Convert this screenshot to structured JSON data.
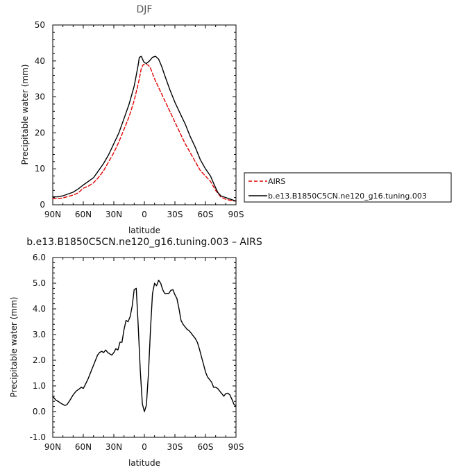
{
  "chart_data": [
    {
      "type": "line",
      "title": "DJF",
      "xlabel": "latitude",
      "ylabel": "Precipitable water (mm)",
      "x_ticks": [
        "90N",
        "60N",
        "30N",
        "0",
        "30S",
        "60S",
        "90S"
      ],
      "x_tick_values": [
        90,
        60,
        30,
        0,
        -30,
        -60,
        -90
      ],
      "xlim": [
        90,
        -90
      ],
      "ylim": [
        0,
        50
      ],
      "y_ticks": [
        "0",
        "10",
        "20",
        "30",
        "40",
        "50"
      ],
      "y_tick_values": [
        0,
        10,
        20,
        30,
        40,
        50
      ],
      "legend_position": "right",
      "series": [
        {
          "name": "AIRS",
          "color": "#e00000",
          "dash": "dashed",
          "points": [
            [
              90,
              1.7
            ],
            [
              85,
              1.7
            ],
            [
              80,
              1.9
            ],
            [
              75,
              2.3
            ],
            [
              70,
              2.7
            ],
            [
              65,
              3.3
            ],
            [
              60,
              4.6
            ],
            [
              55,
              5.2
            ],
            [
              50,
              6.1
            ],
            [
              45,
              7.6
            ],
            [
              40,
              9.5
            ],
            [
              35,
              12
            ],
            [
              30,
              14.5
            ],
            [
              25,
              17.5
            ],
            [
              20,
              21
            ],
            [
              15,
              24.5
            ],
            [
              10,
              29
            ],
            [
              7,
              32.5
            ],
            [
              5,
              35
            ],
            [
              3,
              38
            ],
            [
              1,
              39
            ],
            [
              0,
              39
            ],
            [
              -2,
              39
            ],
            [
              -4,
              38.8
            ],
            [
              -6,
              38
            ],
            [
              -10,
              35
            ],
            [
              -15,
              32
            ],
            [
              -20,
              29
            ],
            [
              -25,
              26
            ],
            [
              -30,
              23
            ],
            [
              -35,
              20
            ],
            [
              -40,
              17
            ],
            [
              -45,
              14.5
            ],
            [
              -50,
              12
            ],
            [
              -55,
              9.5
            ],
            [
              -60,
              8
            ],
            [
              -65,
              6.5
            ],
            [
              -70,
              4
            ],
            [
              -75,
              2.2
            ],
            [
              -80,
              1.5
            ],
            [
              -85,
              1.2
            ],
            [
              -90,
              1
            ]
          ]
        },
        {
          "name": "b.e13.B1850C5CN.ne120_g16.tuning.003",
          "color": "#000000",
          "dash": "solid",
          "points": [
            [
              90,
              2.2
            ],
            [
              85,
              2.2
            ],
            [
              80,
              2.5
            ],
            [
              75,
              3
            ],
            [
              70,
              3.5
            ],
            [
              65,
              4.4
            ],
            [
              60,
              5.5
            ],
            [
              55,
              6.5
            ],
            [
              50,
              7.5
            ],
            [
              45,
              9.5
            ],
            [
              40,
              11.5
            ],
            [
              35,
              14
            ],
            [
              30,
              17
            ],
            [
              25,
              20
            ],
            [
              20,
              24
            ],
            [
              15,
              28
            ],
            [
              10,
              33
            ],
            [
              8,
              36
            ],
            [
              6,
              39
            ],
            [
              5,
              41
            ],
            [
              3,
              41.3
            ],
            [
              1,
              40
            ],
            [
              0,
              39.5
            ],
            [
              -2,
              39.3
            ],
            [
              -5,
              40
            ],
            [
              -8,
              41
            ],
            [
              -11,
              41.3
            ],
            [
              -14,
              40.5
            ],
            [
              -17,
              38.5
            ],
            [
              -20,
              36
            ],
            [
              -25,
              32
            ],
            [
              -30,
              28.5
            ],
            [
              -35,
              25.5
            ],
            [
              -40,
              22.5
            ],
            [
              -45,
              19
            ],
            [
              -50,
              16
            ],
            [
              -55,
              12.5
            ],
            [
              -60,
              10
            ],
            [
              -65,
              8
            ],
            [
              -68,
              6
            ],
            [
              -72,
              3.5
            ],
            [
              -75,
              2.5
            ],
            [
              -80,
              2
            ],
            [
              -85,
              1.5
            ],
            [
              -90,
              1
            ]
          ]
        }
      ]
    },
    {
      "type": "line",
      "title": "b.e13.B1850C5CN.ne120_g16.tuning.003 – AIRS",
      "xlabel": "latitude",
      "ylabel": "Precipitable water (mm)",
      "x_ticks": [
        "90N",
        "60N",
        "30N",
        "0",
        "30S",
        "60S",
        "90S"
      ],
      "x_tick_values": [
        90,
        60,
        30,
        0,
        -30,
        -60,
        -90
      ],
      "xlim": [
        90,
        -90
      ],
      "ylim": [
        -1,
        6
      ],
      "y_ticks": [
        "-1.0",
        "0.0",
        "1.0",
        "2.0",
        "3.0",
        "4.0",
        "5.0",
        "6.0"
      ],
      "y_tick_values": [
        -1,
        0,
        1,
        2,
        3,
        4,
        5,
        6
      ],
      "series": [
        {
          "name": "",
          "color": "#000000",
          "dash": "solid",
          "points": [
            [
              90,
              0.6
            ],
            [
              87,
              0.45
            ],
            [
              84,
              0.38
            ],
            [
              81,
              0.3
            ],
            [
              78,
              0.24
            ],
            [
              76,
              0.27
            ],
            [
              73,
              0.45
            ],
            [
              70,
              0.65
            ],
            [
              67,
              0.8
            ],
            [
              64,
              0.88
            ],
            [
              62,
              0.95
            ],
            [
              60,
              0.9
            ],
            [
              58,
              1.05
            ],
            [
              55,
              1.3
            ],
            [
              52,
              1.6
            ],
            [
              49,
              1.9
            ],
            [
              46,
              2.2
            ],
            [
              44,
              2.3
            ],
            [
              42,
              2.35
            ],
            [
              40,
              2.3
            ],
            [
              38,
              2.4
            ],
            [
              36,
              2.3
            ],
            [
              34,
              2.25
            ],
            [
              32,
              2.2
            ],
            [
              30,
              2.3
            ],
            [
              28,
              2.45
            ],
            [
              26,
              2.4
            ],
            [
              24,
              2.7
            ],
            [
              22,
              2.7
            ],
            [
              20,
              3.2
            ],
            [
              18,
              3.55
            ],
            [
              16,
              3.5
            ],
            [
              14,
              3.7
            ],
            [
              12,
              4.1
            ],
            [
              10,
              4.75
            ],
            [
              8,
              4.8
            ],
            [
              6,
              3.3
            ],
            [
              4,
              1.6
            ],
            [
              2,
              0.3
            ],
            [
              0,
              0
            ],
            [
              -2,
              0.25
            ],
            [
              -4,
              1.5
            ],
            [
              -6,
              3.2
            ],
            [
              -8,
              4.6
            ],
            [
              -10,
              5
            ],
            [
              -12,
              4.9
            ],
            [
              -14,
              5.12
            ],
            [
              -16,
              5
            ],
            [
              -18,
              4.75
            ],
            [
              -20,
              4.6
            ],
            [
              -22,
              4.6
            ],
            [
              -24,
              4.6
            ],
            [
              -26,
              4.72
            ],
            [
              -28,
              4.75
            ],
            [
              -30,
              4.55
            ],
            [
              -32,
              4.4
            ],
            [
              -34,
              4
            ],
            [
              -36,
              3.55
            ],
            [
              -38,
              3.4
            ],
            [
              -40,
              3.3
            ],
            [
              -42,
              3.2
            ],
            [
              -44,
              3.15
            ],
            [
              -46,
              3.05
            ],
            [
              -48,
              2.95
            ],
            [
              -50,
              2.85
            ],
            [
              -52,
              2.7
            ],
            [
              -54,
              2.45
            ],
            [
              -56,
              2.15
            ],
            [
              -58,
              1.85
            ],
            [
              -60,
              1.55
            ],
            [
              -62,
              1.35
            ],
            [
              -64,
              1.25
            ],
            [
              -66,
              1.15
            ],
            [
              -68,
              0.95
            ],
            [
              -70,
              0.95
            ],
            [
              -72,
              0.9
            ],
            [
              -74,
              0.8
            ],
            [
              -76,
              0.7
            ],
            [
              -78,
              0.6
            ],
            [
              -80,
              0.7
            ],
            [
              -82,
              0.72
            ],
            [
              -84,
              0.65
            ],
            [
              -86,
              0.48
            ],
            [
              -88,
              0.28
            ],
            [
              -90,
              0.22
            ]
          ]
        }
      ]
    }
  ]
}
